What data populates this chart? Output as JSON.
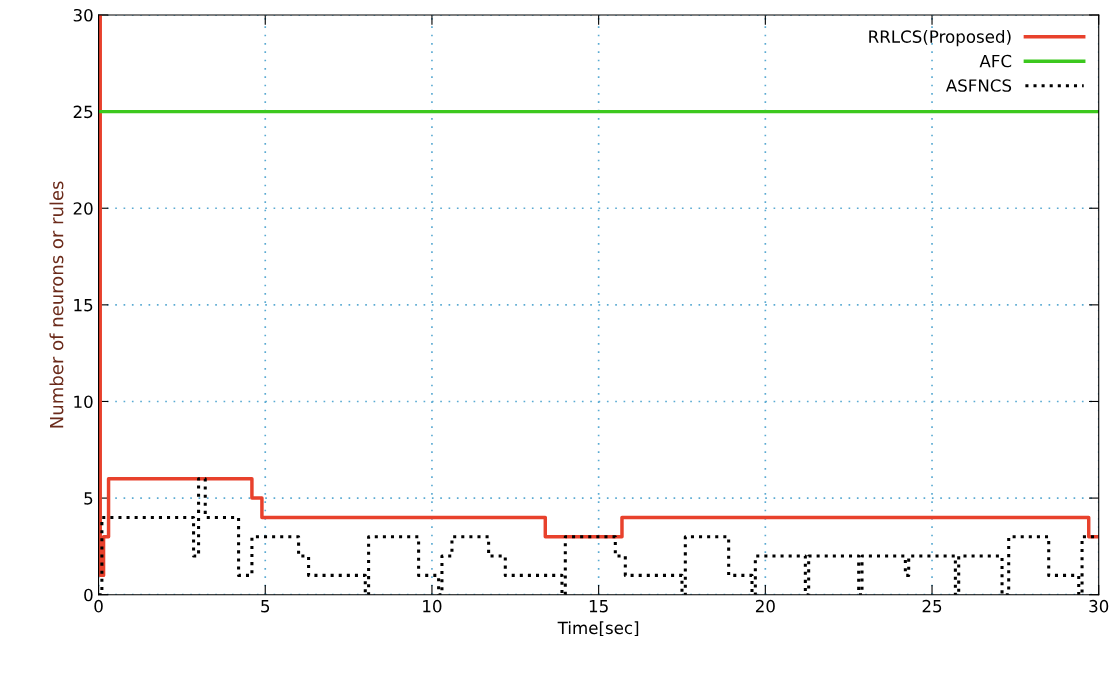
{
  "chart_data": {
    "type": "step",
    "xlabel": "Time[sec]",
    "ylabel": "Number of neurons or rules",
    "xlim": [
      0,
      30
    ],
    "ylim": [
      0,
      30
    ],
    "xticks": [
      0,
      5,
      10,
      15,
      20,
      25,
      30
    ],
    "yticks": [
      0,
      5,
      10,
      15,
      20,
      25,
      30
    ],
    "grid": true,
    "legend": "top right",
    "marker": "none",
    "series": [
      {
        "name": "RRLCS(Proposed)",
        "color": "#e8412c",
        "line_style": "solid",
        "x": [
          0,
          0.05,
          0.15,
          0.3,
          4.6,
          4.9,
          13.4,
          15.7,
          29.7,
          30
        ],
        "values": [
          30,
          1,
          3,
          6,
          5,
          4,
          3,
          4,
          3,
          3
        ]
      },
      {
        "name": "AFC",
        "color": "#3cc81e",
        "line_style": "solid",
        "x": [
          0,
          30
        ],
        "values": [
          25,
          25
        ]
      },
      {
        "name": "ASFNCS",
        "color": "#000000",
        "line_style": "dotted",
        "x": [
          0,
          0.1,
          2.85,
          3.0,
          3.2,
          4.2,
          4.6,
          6.0,
          6.3,
          8.0,
          8.1,
          9.6,
          10.2,
          10.3,
          10.6,
          11.7,
          12.2,
          13.9,
          14.0,
          15.5,
          15.8,
          17.5,
          17.6,
          18.9,
          19.6,
          19.7,
          21.2,
          21.3,
          22.8,
          22.9,
          24.2,
          24.3,
          25.7,
          25.8,
          27.1,
          27.3,
          28.5,
          29.4,
          29.5,
          30
        ],
        "values": [
          0,
          4,
          2,
          6,
          4,
          1,
          3,
          2,
          1,
          0,
          3,
          1,
          0,
          2,
          3,
          2,
          1,
          0,
          3,
          2,
          1,
          0,
          3,
          1,
          0,
          2,
          0,
          2,
          0,
          2,
          1,
          2,
          0,
          2,
          0,
          3,
          1,
          0,
          3,
          3
        ]
      }
    ]
  }
}
